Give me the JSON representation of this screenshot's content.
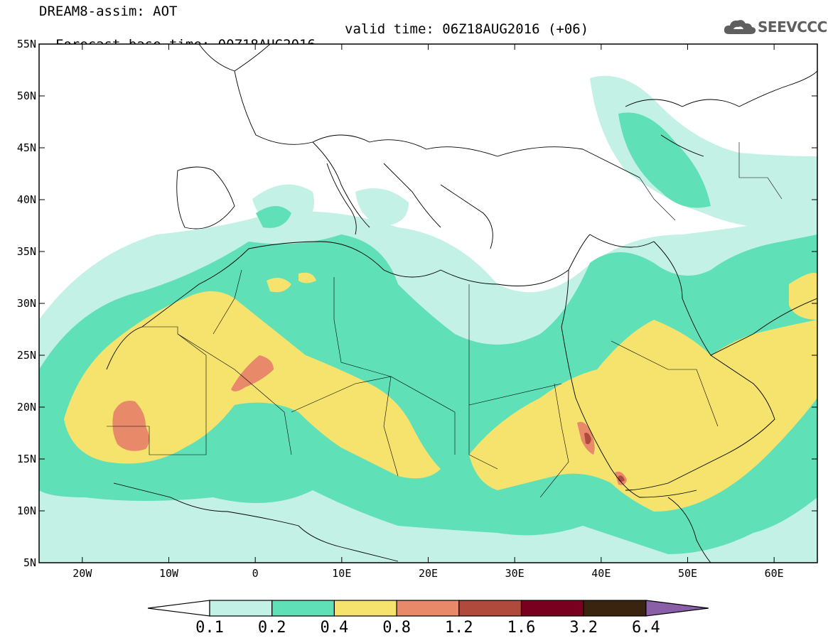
{
  "header": {
    "line1": "DREAM8-assim: AOT",
    "base_time": "Forecast base time: 00Z18AUG2016",
    "valid_time": "valid time: 06Z18AUG2016 (+06)"
  },
  "logo": {
    "text": "SEEVCCC",
    "icon": "cloud-icon"
  },
  "map": {
    "lon_range": [
      -25,
      65
    ],
    "lat_range": [
      5,
      55
    ],
    "lat_ticks": [
      {
        "value": 55,
        "label": "55N"
      },
      {
        "value": 50,
        "label": "50N"
      },
      {
        "value": 45,
        "label": "45N"
      },
      {
        "value": 40,
        "label": "40N"
      },
      {
        "value": 35,
        "label": "35N"
      },
      {
        "value": 30,
        "label": "30N"
      },
      {
        "value": 25,
        "label": "25N"
      },
      {
        "value": 20,
        "label": "20N"
      },
      {
        "value": 15,
        "label": "15N"
      },
      {
        "value": 10,
        "label": "10N"
      },
      {
        "value": 5,
        "label": "5N"
      }
    ],
    "lon_ticks": [
      {
        "value": -20,
        "label": "20W"
      },
      {
        "value": -10,
        "label": "10W"
      },
      {
        "value": 0,
        "label": "0"
      },
      {
        "value": 10,
        "label": "10E"
      },
      {
        "value": 20,
        "label": "20E"
      },
      {
        "value": 30,
        "label": "30E"
      },
      {
        "value": 40,
        "label": "40E"
      },
      {
        "value": 50,
        "label": "50E"
      },
      {
        "value": 60,
        "label": "60E"
      }
    ]
  },
  "colorbar": {
    "levels": [
      "0.1",
      "0.2",
      "0.4",
      "0.8",
      "1.2",
      "1.6",
      "3.2",
      "6.4"
    ],
    "colors": [
      "#ffffff",
      "#c4f1e6",
      "#5fe0b6",
      "#f5e36e",
      "#e8896a",
      "#b04a3c",
      "#7a0020",
      "#3a2410",
      "#8a5fa8"
    ]
  }
}
